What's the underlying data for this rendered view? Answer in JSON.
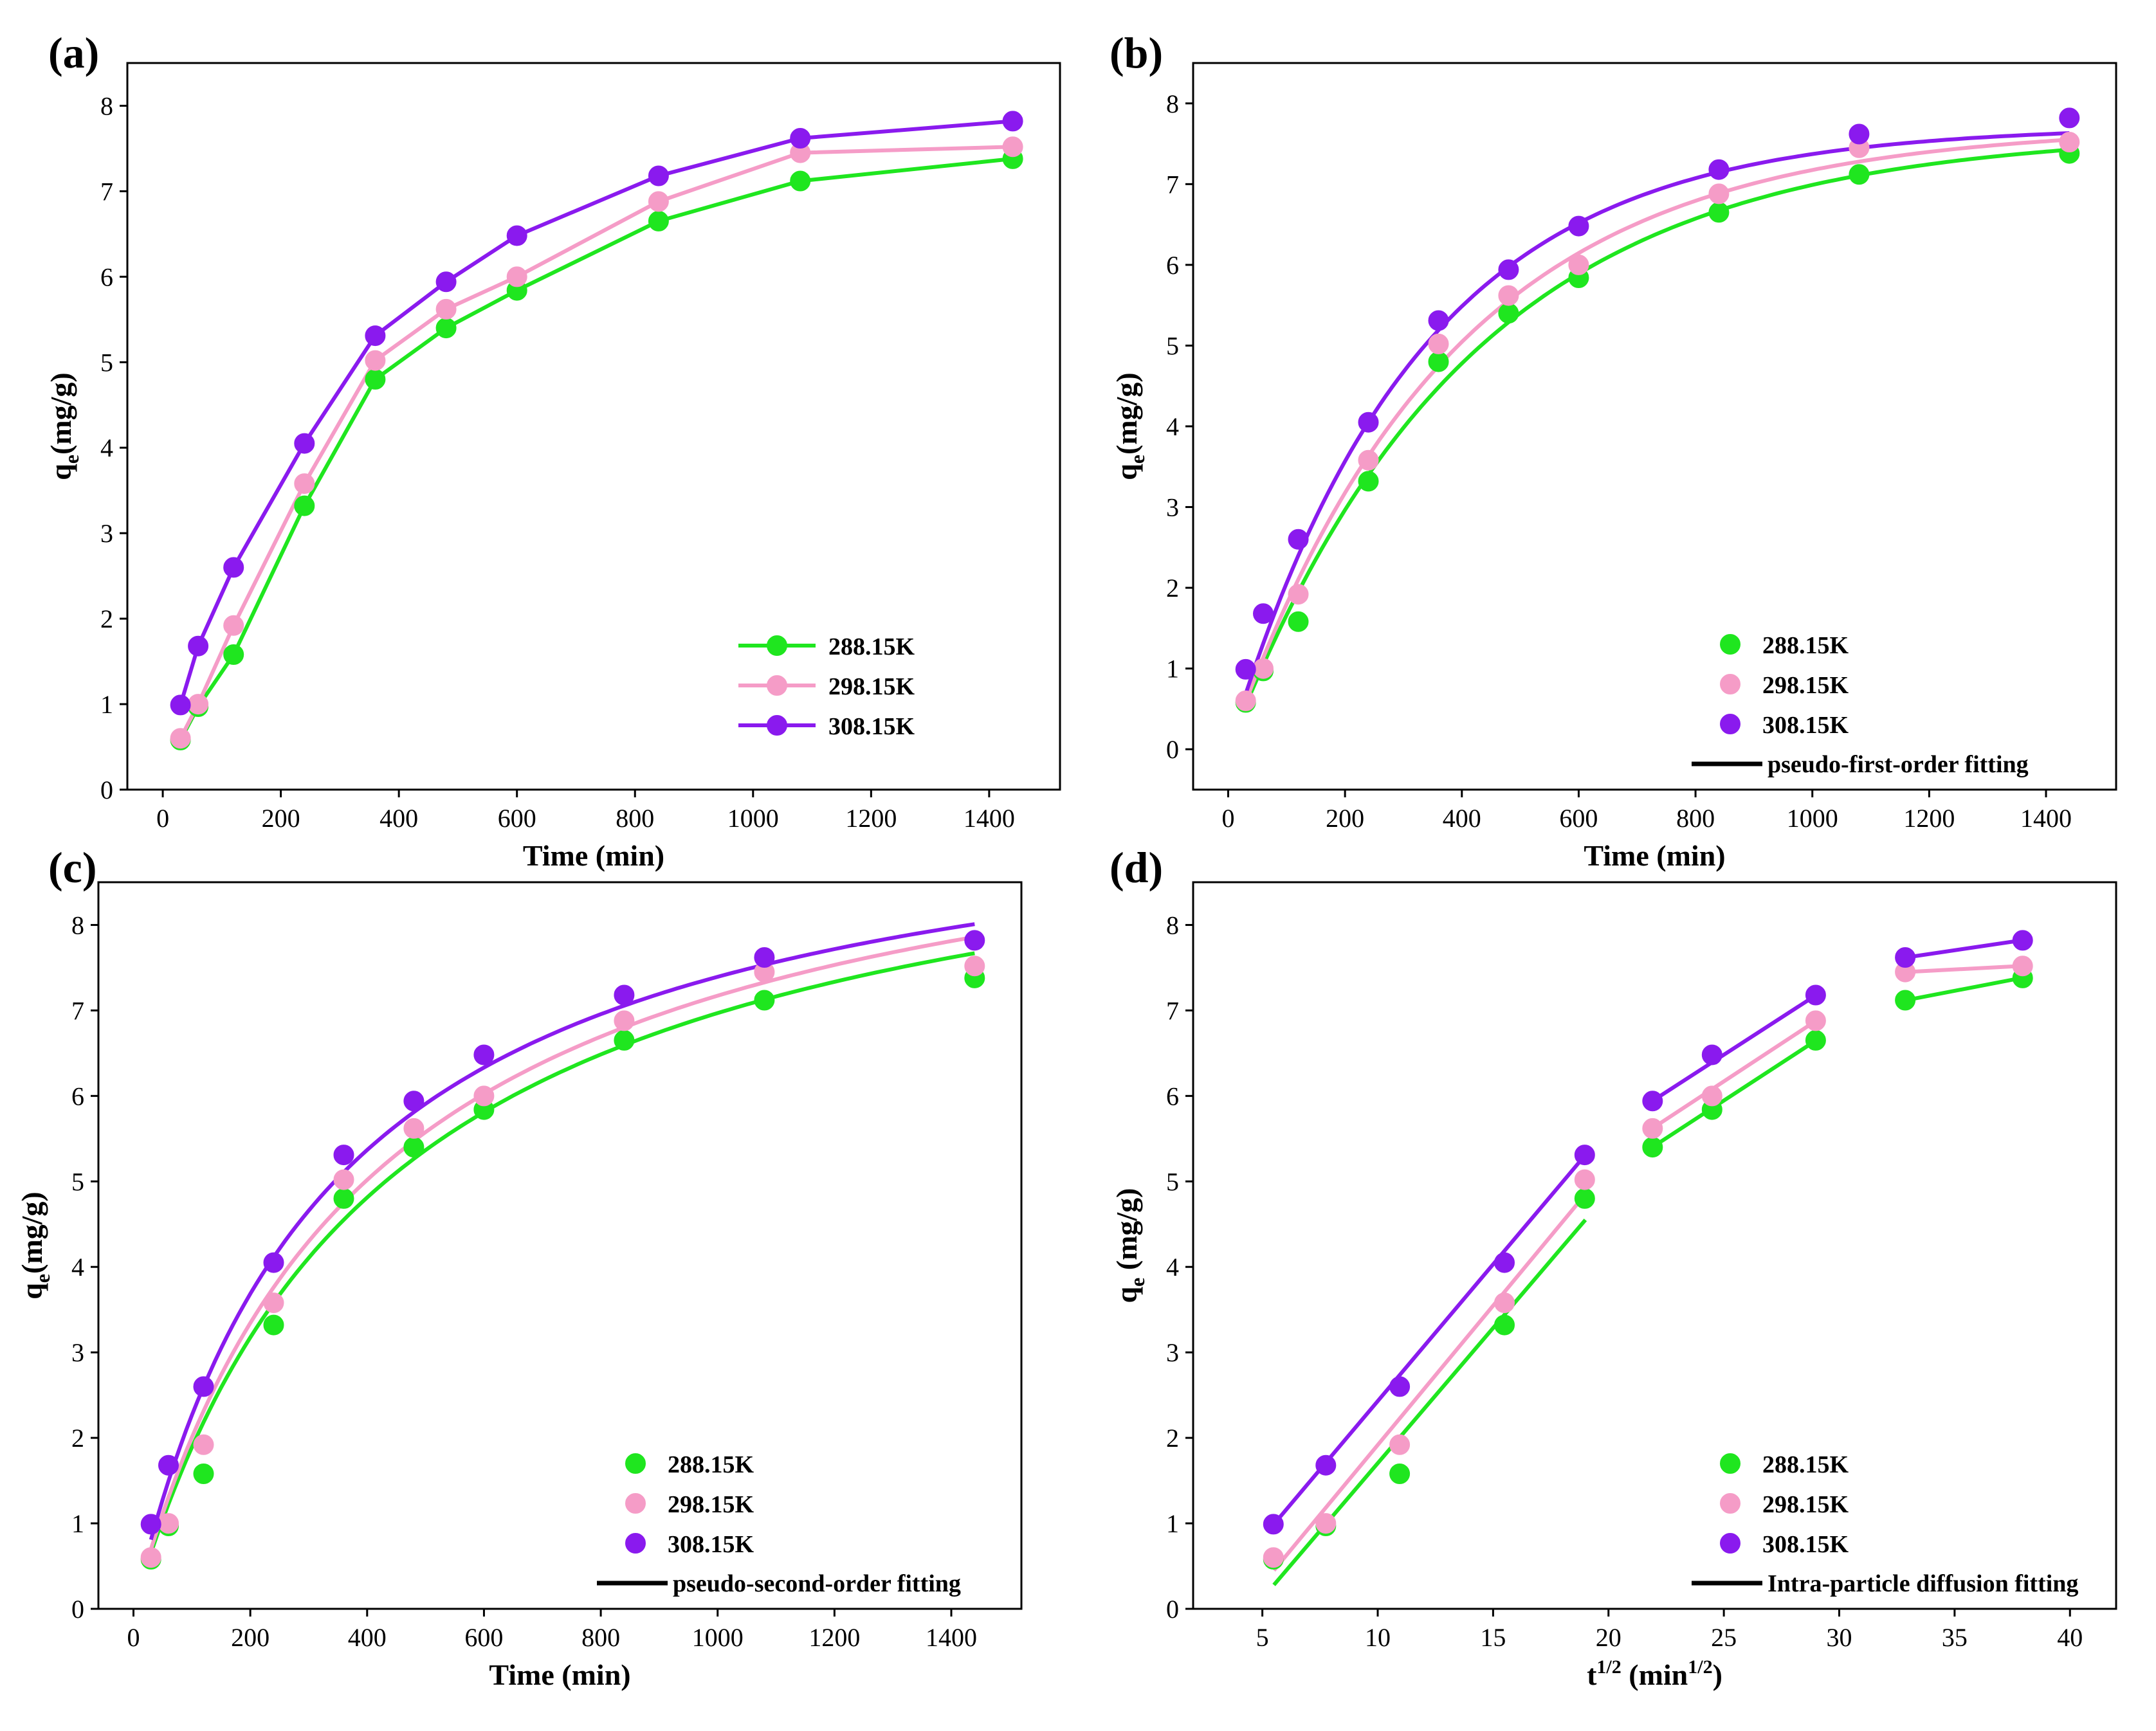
{
  "colors": {
    "288.15K": "#1fe61f",
    "298.15K": "#f59cc7",
    "308.15K": "#8a1aee",
    "fit": "#000000",
    "frame": "#000000"
  },
  "chart_data": [
    {
      "panel": "(a)",
      "type": "line",
      "title": "",
      "xlabel": "Time (min)",
      "ylabel": "q_e(mg/g)",
      "ylabel_main": "q",
      "ylabel_sub": "e",
      "ylabel_rest": "(mg/g)",
      "xlim": [
        -60,
        1520
      ],
      "ylim": [
        0,
        8.5
      ],
      "xticks": [
        0,
        200,
        400,
        600,
        800,
        1000,
        1200,
        1400
      ],
      "yticks": [
        0,
        1,
        2,
        3,
        4,
        5,
        6,
        7,
        8
      ],
      "legend_position": "lower-right",
      "legend_style": "line-marker",
      "x": [
        30,
        60,
        120,
        240,
        360,
        480,
        600,
        840,
        1080,
        1440
      ],
      "series": [
        {
          "name": "288.15K",
          "values": [
            0.58,
            0.97,
            1.58,
            3.32,
            4.8,
            5.4,
            5.84,
            6.65,
            7.12,
            7.38
          ]
        },
        {
          "name": "298.15K",
          "values": [
            0.6,
            1.0,
            1.92,
            3.58,
            5.02,
            5.62,
            6.0,
            6.88,
            7.45,
            7.52
          ]
        },
        {
          "name": "308.15K",
          "values": [
            0.99,
            1.68,
            2.6,
            4.05,
            5.31,
            5.94,
            6.48,
            7.18,
            7.62,
            7.82
          ]
        }
      ]
    },
    {
      "panel": "(b)",
      "type": "scatter",
      "title": "",
      "xlabel": "Time (min)",
      "ylabel": "q_e(mg/g)",
      "ylabel_main": "q",
      "ylabel_sub": "e",
      "ylabel_rest": "(mg/g)",
      "xlim": [
        -60,
        1520
      ],
      "ylim": [
        -0.5,
        8.5
      ],
      "xticks": [
        0,
        200,
        400,
        600,
        800,
        1000,
        1200,
        1400
      ],
      "yticks": [
        0,
        1,
        2,
        3,
        4,
        5,
        6,
        7,
        8
      ],
      "legend_position": "lower-right",
      "legend_style": "marker",
      "fit_label": "pseudo-first-order fitting",
      "fit_model": "pfo",
      "x": [
        30,
        60,
        120,
        240,
        360,
        480,
        600,
        840,
        1080,
        1440
      ],
      "series": [
        {
          "name": "288.15K",
          "values": [
            0.58,
            0.97,
            1.58,
            3.32,
            4.8,
            5.4,
            5.84,
            6.65,
            7.12,
            7.38
          ],
          "fit": {
            "qe": 7.65,
            "k1": 0.00245
          }
        },
        {
          "name": "298.15K",
          "values": [
            0.6,
            1.0,
            1.92,
            3.58,
            5.02,
            5.62,
            6.0,
            6.88,
            7.45,
            7.52
          ],
          "fit": {
            "qe": 7.72,
            "k1": 0.00265
          }
        },
        {
          "name": "308.15K",
          "values": [
            0.99,
            1.68,
            2.6,
            4.05,
            5.31,
            5.94,
            6.48,
            7.18,
            7.62,
            7.82
          ],
          "fit": {
            "qe": 7.72,
            "k1": 0.0031
          }
        }
      ]
    },
    {
      "panel": "(c)",
      "type": "scatter",
      "title": "",
      "xlabel": "Time (min)",
      "ylabel": "q_e(mg/g)",
      "ylabel_main": "q",
      "ylabel_sub": "e",
      "ylabel_rest": "(mg/g)",
      "xlim": [
        -60,
        1520
      ],
      "ylim": [
        0,
        8.5
      ],
      "xticks": [
        0,
        200,
        400,
        600,
        800,
        1000,
        1200,
        1400
      ],
      "yticks": [
        0,
        1,
        2,
        3,
        4,
        5,
        6,
        7,
        8
      ],
      "legend_position": "lower-right",
      "legend_style": "marker",
      "fit_label": "pseudo-second-order fitting",
      "fit_model": "pso",
      "x": [
        30,
        60,
        120,
        240,
        360,
        480,
        600,
        840,
        1080,
        1440
      ],
      "series": [
        {
          "name": "288.15K",
          "values": [
            0.58,
            0.97,
            1.58,
            3.32,
            4.8,
            5.4,
            5.84,
            6.65,
            7.12,
            7.38
          ],
          "fit": {
            "qe": 9.94,
            "k2": 0.000236
          }
        },
        {
          "name": "298.15K",
          "values": [
            0.6,
            1.0,
            1.92,
            3.58,
            5.02,
            5.62,
            6.0,
            6.88,
            7.45,
            7.52
          ],
          "fit": {
            "qe": 10.05,
            "k2": 0.000248
          }
        },
        {
          "name": "308.15K",
          "values": [
            0.99,
            1.68,
            2.6,
            4.05,
            5.31,
            5.94,
            6.48,
            7.18,
            7.62,
            7.82
          ],
          "fit": {
            "qe": 9.88,
            "k2": 0.000301
          }
        }
      ]
    },
    {
      "panel": "(d)",
      "type": "scatter",
      "title": "",
      "xlabel": "t^(1/2) (min^(1/2))",
      "xlabel_main": "t",
      "xlabel_sup": "1/2",
      "xlabel_mid": " (min",
      "xlabel_sup2": "1/2",
      "xlabel_end": ")",
      "ylabel": "q_e (mg/g)",
      "ylabel_main": "q",
      "ylabel_sub": "e",
      "ylabel_rest": " (mg/g)",
      "xlim": [
        2,
        42
      ],
      "ylim": [
        0,
        8.5
      ],
      "xticks": [
        5,
        10,
        15,
        20,
        25,
        30,
        35,
        40
      ],
      "yticks": [
        0,
        1,
        2,
        3,
        4,
        5,
        6,
        7,
        8
      ],
      "legend_position": "lower-right",
      "legend_style": "marker",
      "fit_label": "Intra-particle diffusion fitting",
      "fit_model": "segments",
      "x": [
        5.48,
        7.75,
        10.95,
        15.49,
        18.97,
        21.91,
        24.49,
        28.98,
        32.86,
        37.95
      ],
      "series": [
        {
          "name": "288.15K",
          "values": [
            0.58,
            0.97,
            1.58,
            3.32,
            4.8,
            5.4,
            5.84,
            6.65,
            7.12,
            7.38
          ],
          "fit_segments": [
            [
              5.5,
              0.28,
              19.0,
              4.55
            ],
            [
              21.9,
              5.4,
              29.0,
              6.65
            ],
            [
              32.9,
              7.12,
              37.9,
              7.38
            ]
          ]
        },
        {
          "name": "298.15K",
          "values": [
            0.6,
            1.0,
            1.92,
            3.58,
            5.02,
            5.62,
            6.0,
            6.88,
            7.45,
            7.52
          ],
          "fit_segments": [
            [
              5.5,
              0.45,
              19.0,
              4.85
            ],
            [
              21.9,
              5.62,
              29.0,
              6.88
            ],
            [
              32.9,
              7.45,
              37.9,
              7.52
            ]
          ]
        },
        {
          "name": "308.15K",
          "values": [
            0.99,
            1.68,
            2.6,
            4.05,
            5.31,
            5.94,
            6.48,
            7.18,
            7.62,
            7.82
          ],
          "fit_segments": [
            [
              5.5,
              0.99,
              19.0,
              5.31
            ],
            [
              21.9,
              5.94,
              29.0,
              7.18
            ],
            [
              32.9,
              7.62,
              37.9,
              7.82
            ]
          ]
        }
      ]
    }
  ]
}
